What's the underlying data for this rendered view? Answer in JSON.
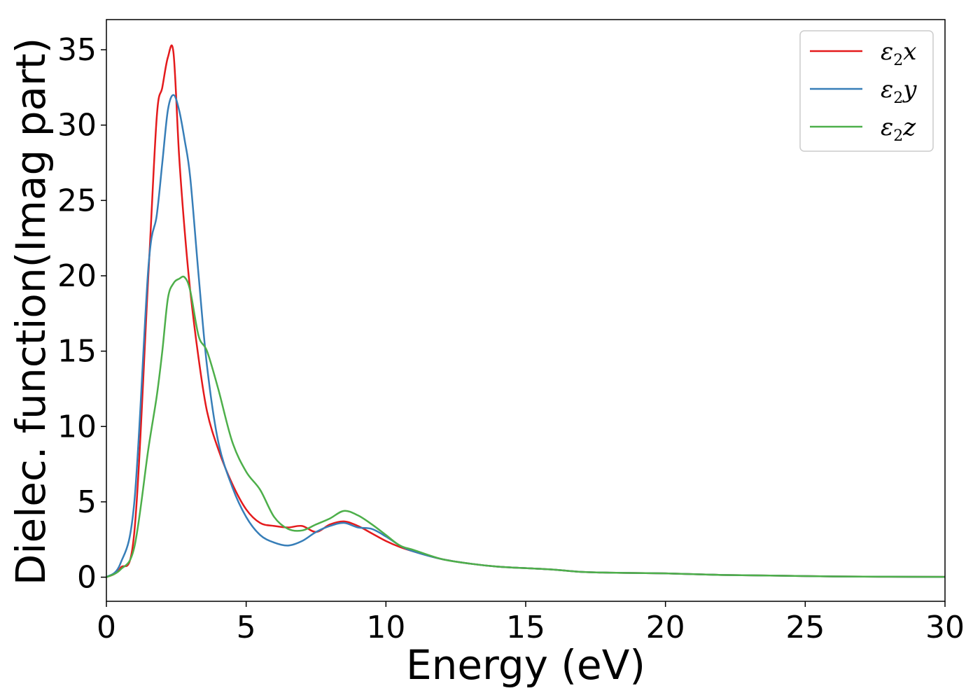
{
  "chart_data": {
    "type": "line",
    "title": "",
    "xlabel": "Energy (eV)",
    "ylabel": "Dielec. function(Imag part)",
    "xlim": [
      0,
      30
    ],
    "ylim": [
      -1.6,
      37
    ],
    "xticks": [
      0,
      5,
      10,
      15,
      20,
      25,
      30
    ],
    "yticks": [
      0,
      5,
      10,
      15,
      20,
      25,
      30,
      35
    ],
    "grid": false,
    "legend_position": "top-right",
    "x": [
      0,
      0.5,
      1.0,
      1.5,
      1.8,
      2.0,
      2.2,
      2.4,
      2.6,
      2.8,
      3.0,
      3.3,
      3.6,
      4.0,
      4.5,
      5.0,
      5.5,
      6.0,
      6.5,
      7.0,
      7.5,
      8.0,
      8.5,
      9.0,
      9.5,
      10.0,
      10.5,
      11.0,
      12.0,
      13.0,
      14.0,
      15.0,
      16.0,
      17.0,
      18.0,
      20.0,
      22.0,
      24.0,
      26.0,
      28.0,
      30.0
    ],
    "series": [
      {
        "name": "ε",
        "sub": "2",
        "axis": "x",
        "color": "#e41a1c",
        "values": [
          0,
          0.6,
          3.0,
          20.0,
          30.5,
          32.5,
          34.5,
          34.8,
          28.0,
          23.0,
          19.0,
          14.5,
          11.0,
          8.5,
          6.2,
          4.5,
          3.6,
          3.4,
          3.3,
          3.4,
          3.0,
          3.5,
          3.7,
          3.4,
          2.9,
          2.4,
          2.0,
          1.7,
          1.2,
          0.9,
          0.7,
          0.6,
          0.5,
          0.35,
          0.3,
          0.25,
          0.15,
          0.1,
          0.05,
          0.03,
          0.02
        ]
      },
      {
        "name": "ε",
        "sub": "2",
        "axis": "y",
        "color": "#377eb8",
        "values": [
          0,
          0.9,
          5.0,
          20.5,
          24.0,
          27.5,
          31.0,
          32.0,
          31.0,
          29.0,
          26.5,
          20.0,
          14.0,
          9.0,
          6.0,
          4.0,
          2.8,
          2.3,
          2.1,
          2.4,
          3.0,
          3.4,
          3.6,
          3.3,
          3.2,
          2.7,
          2.1,
          1.7,
          1.2,
          0.9,
          0.7,
          0.6,
          0.5,
          0.35,
          0.3,
          0.25,
          0.15,
          0.1,
          0.05,
          0.03,
          0.02
        ]
      },
      {
        "name": "ε",
        "sub": "2",
        "axis": "z",
        "color": "#4daf4a",
        "values": [
          0,
          0.5,
          2.0,
          8.5,
          12.0,
          15.0,
          18.5,
          19.5,
          19.8,
          19.9,
          19.0,
          16.0,
          15.0,
          12.5,
          9.0,
          7.0,
          5.8,
          4.0,
          3.2,
          3.1,
          3.5,
          3.9,
          4.4,
          4.1,
          3.5,
          2.8,
          2.1,
          1.8,
          1.2,
          0.9,
          0.7,
          0.6,
          0.5,
          0.35,
          0.3,
          0.25,
          0.15,
          0.1,
          0.05,
          0.03,
          0.02
        ]
      }
    ]
  }
}
